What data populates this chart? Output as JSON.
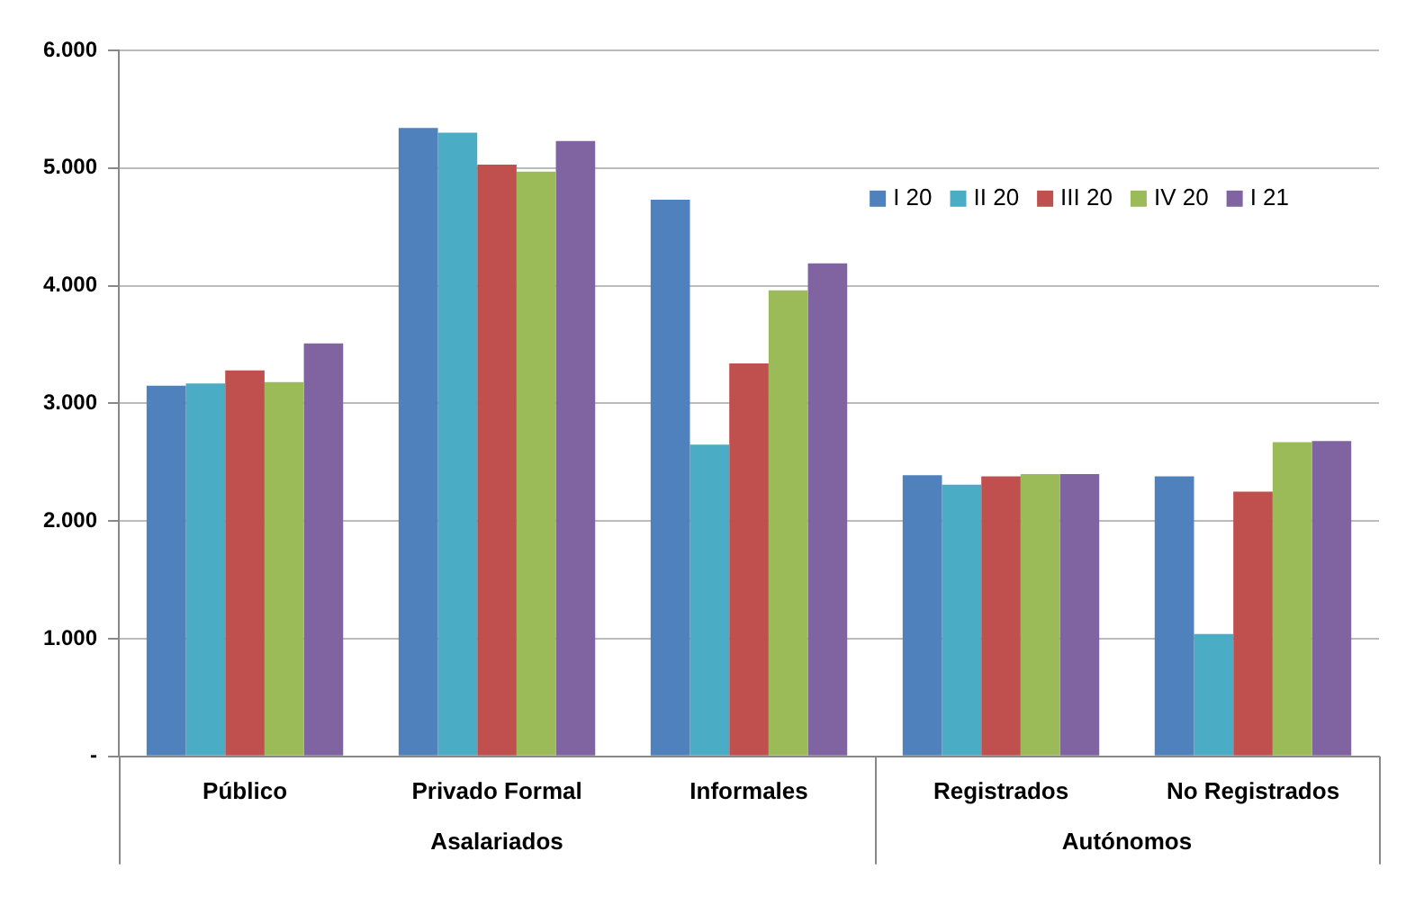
{
  "chart_data": {
    "type": "bar",
    "categories": [
      "Público",
      "Privado Formal",
      "Informales",
      "Registrados",
      "No Registrados"
    ],
    "series": [
      {
        "name": "I 20",
        "color": "#4f81bd",
        "values": [
          3150,
          5340,
          4730,
          2390,
          2380
        ]
      },
      {
        "name": "II 20",
        "color": "#4bacc6",
        "values": [
          3170,
          5300,
          2650,
          2310,
          1040
        ]
      },
      {
        "name": "III 20",
        "color": "#c0504d",
        "values": [
          3280,
          5030,
          3340,
          2380,
          2250
        ]
      },
      {
        "name": "IV 20",
        "color": "#9bbb59",
        "values": [
          3180,
          4970,
          3960,
          2400,
          2670
        ]
      },
      {
        "name": "I 21",
        "color": "#8064a2",
        "values": [
          3510,
          5230,
          4190,
          2400,
          2680
        ]
      }
    ],
    "ylim": [
      0,
      6000
    ],
    "yticks": [
      {
        "value": 0,
        "label": "-"
      },
      {
        "value": 1000,
        "label": "1.000"
      },
      {
        "value": 2000,
        "label": "2.000"
      },
      {
        "value": 3000,
        "label": "3.000"
      },
      {
        "value": 4000,
        "label": "4.000"
      },
      {
        "value": 5000,
        "label": "5.000"
      },
      {
        "value": 6000,
        "label": "6.000"
      }
    ],
    "grid": "y",
    "legend": "top right",
    "annotations": [
      "Asalariados",
      "Autónomos"
    ]
  }
}
